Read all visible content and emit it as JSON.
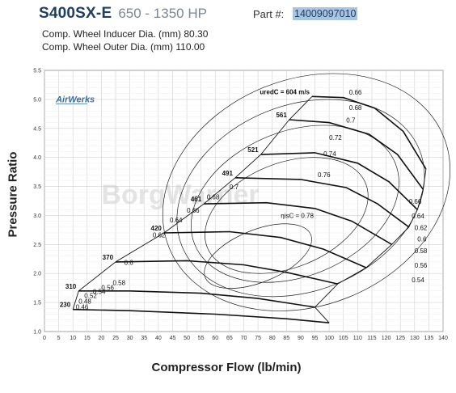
{
  "header": {
    "model": "S400SX-E",
    "hp_range": "650 - 1350 HP",
    "part_label": "Part #:",
    "part_number": "14009097010"
  },
  "specs": {
    "inducer": "Comp. Wheel Inducer Dia. (mm) 80.30",
    "outer": "Comp. Wheel Outer Dia. (mm) 110.00"
  },
  "logo_text": "AirWerks",
  "watermark": "BorgWarner",
  "colors": {
    "title": "#1f3e66",
    "part_bg": "#a9c4e0",
    "logo": "#3a6ea5"
  },
  "chart_data": {
    "type": "line",
    "title": "",
    "xlabel": "Compressor Flow (lb/min)",
    "ylabel": "Pressure Ratio",
    "xlim": [
      0,
      140
    ],
    "ylim": [
      1.0,
      5.5
    ],
    "x_ticks": [
      0,
      5,
      10,
      15,
      20,
      25,
      30,
      35,
      40,
      45,
      50,
      55,
      60,
      65,
      70,
      75,
      80,
      85,
      90,
      95,
      100,
      105,
      110,
      115,
      120,
      125,
      130,
      135,
      140
    ],
    "y_ticks": [
      1.0,
      1.5,
      2.0,
      2.5,
      3.0,
      3.5,
      4.0,
      4.5,
      5.0,
      5.5
    ],
    "grid": true,
    "speed_lines": [
      {
        "label": "230",
        "points": [
          [
            10,
            1.38
          ],
          [
            30,
            1.36
          ],
          [
            60,
            1.3
          ],
          [
            85,
            1.22
          ],
          [
            100,
            1.15
          ]
        ]
      },
      {
        "label": "310",
        "points": [
          [
            12,
            1.7
          ],
          [
            30,
            1.7
          ],
          [
            55,
            1.66
          ],
          [
            75,
            1.57
          ],
          [
            95,
            1.42
          ]
        ]
      },
      {
        "label": "370",
        "points": [
          [
            25,
            2.2
          ],
          [
            50,
            2.22
          ],
          [
            70,
            2.15
          ],
          [
            85,
            2.02
          ],
          [
            103,
            1.82
          ]
        ]
      },
      {
        "label": "420",
        "points": [
          [
            42,
            2.7
          ],
          [
            65,
            2.72
          ],
          [
            83,
            2.62
          ],
          [
            98,
            2.42
          ],
          [
            113,
            2.1
          ]
        ]
      },
      {
        "label": "461",
        "points": [
          [
            56,
            3.2
          ],
          [
            78,
            3.22
          ],
          [
            95,
            3.12
          ],
          [
            108,
            2.9
          ],
          [
            122,
            2.5
          ]
        ]
      },
      {
        "label": "491",
        "points": [
          [
            67,
            3.65
          ],
          [
            90,
            3.62
          ],
          [
            106,
            3.48
          ],
          [
            117,
            3.2
          ],
          [
            128,
            2.8
          ]
        ]
      },
      {
        "label": "521",
        "points": [
          [
            76,
            4.05
          ],
          [
            95,
            4.08
          ],
          [
            110,
            3.9
          ],
          [
            121,
            3.58
          ],
          [
            131,
            3.1
          ]
        ]
      },
      {
        "label": "561",
        "points": [
          [
            86,
            4.65
          ],
          [
            100,
            4.6
          ],
          [
            114,
            4.4
          ],
          [
            124,
            4.05
          ],
          [
            133,
            3.45
          ]
        ]
      },
      {
        "label": "uredC = 604 m/s",
        "points": [
          [
            94,
            5.05
          ],
          [
            105,
            5.03
          ],
          [
            116,
            4.85
          ],
          [
            126,
            4.45
          ],
          [
            134,
            3.8
          ]
        ]
      }
    ],
    "surge_line": [
      [
        10,
        1.38
      ],
      [
        12,
        1.7
      ],
      [
        25,
        2.2
      ],
      [
        42,
        2.7
      ],
      [
        56,
        3.2
      ],
      [
        67,
        3.65
      ],
      [
        76,
        4.05
      ],
      [
        86,
        4.65
      ],
      [
        94,
        5.05
      ]
    ],
    "choke_line": [
      [
        100,
        1.15
      ],
      [
        95,
        1.42
      ],
      [
        103,
        1.82
      ],
      [
        113,
        2.1
      ],
      [
        122,
        2.5
      ],
      [
        128,
        2.8
      ],
      [
        131,
        3.1
      ],
      [
        133,
        3.45
      ],
      [
        134,
        3.8
      ]
    ],
    "efficiency_islands": [
      {
        "label": "0.78",
        "cx": 75,
        "cy": 2.3,
        "rx": 20,
        "ry": 0.45
      },
      {
        "label": "0.76",
        "cx": 85,
        "cy": 3.0,
        "rx": 30,
        "ry": 0.9
      },
      {
        "label": "0.74",
        "cx": 88,
        "cy": 3.2,
        "rx": 38,
        "ry": 1.25
      },
      {
        "label": "0.72",
        "cx": 90,
        "cy": 3.3,
        "rx": 45,
        "ry": 1.6
      },
      {
        "label": "0.7",
        "cx": 92,
        "cy": 3.4,
        "rx": 52,
        "ry": 1.95
      }
    ],
    "labels": {
      "surge_speeds": [
        "230",
        "310",
        "370",
        "420",
        "461",
        "491",
        "521",
        "561"
      ],
      "top_speed": "uredC = 604 m/s",
      "eff_values_surge": [
        "0.46",
        "0.48",
        "0.52",
        "0.54",
        "0.56",
        "0.58",
        "0.6",
        "0.62",
        "0.64",
        "0.66",
        "0.68",
        "0.7"
      ],
      "eff_values_choke": [
        "0.66",
        "0.64",
        "0.62",
        "0.6",
        "0.58",
        "0.56",
        "0.54"
      ],
      "eff_values_top": [
        "0.66",
        "0.68",
        "0.7",
        "0.72",
        "0.74",
        "0.76"
      ],
      "center_eff": "ηisC = 0.78"
    }
  }
}
